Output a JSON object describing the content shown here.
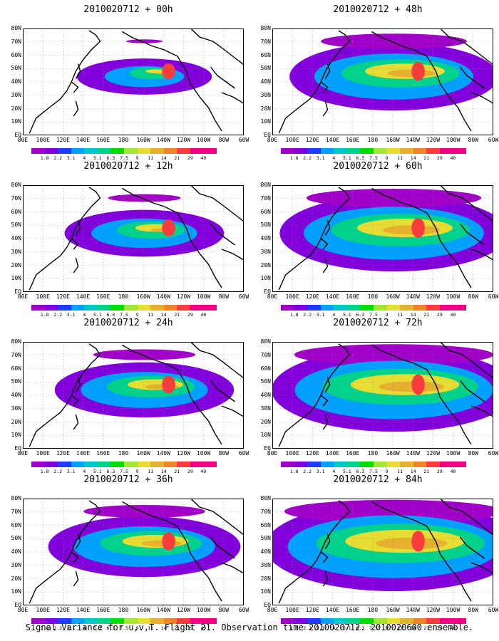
{
  "panels": [
    {
      "title": "2010020712 + 00h",
      "level": 0.15
    },
    {
      "title": "2010020712 + 48h",
      "level": 0.6
    },
    {
      "title": "2010020712 + 12h",
      "level": 0.3
    },
    {
      "title": "2010020712 + 60h",
      "level": 0.72
    },
    {
      "title": "2010020712 + 24h",
      "level": 0.42
    },
    {
      "title": "2010020712 + 72h",
      "level": 0.82
    },
    {
      "title": "2010020712 + 36h",
      "level": 0.5
    },
    {
      "title": "2010020712 + 84h",
      "level": 0.9
    }
  ],
  "lat_labels": [
    "80N",
    "70N",
    "60N",
    "50N",
    "40N",
    "30N",
    "20N",
    "10N",
    "EQ"
  ],
  "lon_labels": [
    "80E",
    "100E",
    "120E",
    "140E",
    "160E",
    "180",
    "160W",
    "140W",
    "120W",
    "100W",
    "80W",
    "60W"
  ],
  "colorbar": {
    "labels": [
      "1.8",
      "2.2",
      "3.1",
      "4",
      "5.1",
      "6.3",
      "7.5",
      "9",
      "11",
      "14",
      "21",
      "29",
      "40"
    ],
    "colors": [
      "#a000c8",
      "#8200dc",
      "#1e3cff",
      "#00a0ff",
      "#00c8c8",
      "#00d28c",
      "#00dc00",
      "#a0e632",
      "#e6dc32",
      "#e6af2d",
      "#f08228",
      "#fa3c3c",
      "#f00082"
    ]
  },
  "footer": "Signal Variance for u,v,T. Flight 21. Observation time 2010020712. 2010020600 ensemble."
}
